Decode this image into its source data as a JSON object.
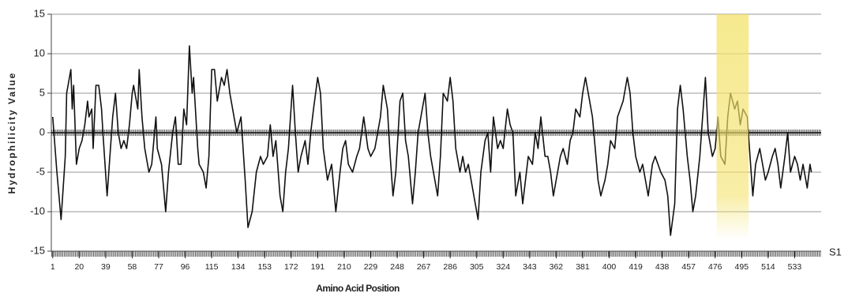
{
  "chart_data": {
    "type": "line",
    "y_label": "Hydrophilicity Value",
    "x_label": "Amino Acid Position",
    "x": [
      1,
      4,
      7,
      10,
      11,
      13,
      14,
      15,
      16,
      18,
      20,
      22,
      24,
      26,
      27,
      29,
      30,
      32,
      34,
      36,
      37,
      40,
      42,
      44,
      46,
      48,
      50,
      52,
      54,
      56,
      58,
      59,
      62,
      63,
      65,
      67,
      70,
      72,
      75,
      76,
      79,
      82,
      84,
      87,
      89,
      91,
      93,
      95,
      97,
      99,
      101,
      102,
      105,
      106,
      109,
      111,
      113,
      115,
      117,
      119,
      122,
      124,
      126,
      128,
      131,
      133,
      136,
      139,
      141,
      144,
      147,
      150,
      152,
      155,
      157,
      159,
      161,
      164,
      166,
      168,
      170,
      173,
      175,
      177,
      179,
      182,
      184,
      186,
      188,
      191,
      193,
      195,
      198,
      201,
      204,
      207,
      209,
      211,
      213,
      216,
      219,
      221,
      224,
      227,
      229,
      232,
      234,
      236,
      238,
      241,
      243,
      245,
      247,
      250,
      252,
      254,
      256,
      259,
      261,
      263,
      265,
      268,
      270,
      272,
      274,
      277,
      279,
      281,
      284,
      286,
      288,
      290,
      293,
      295,
      297,
      299,
      302,
      304,
      306,
      308,
      311,
      313,
      315,
      317,
      320,
      322,
      324,
      327,
      329,
      331,
      333,
      336,
      338,
      340,
      342,
      345,
      347,
      349,
      351,
      354,
      356,
      358,
      360,
      363,
      365,
      367,
      370,
      372,
      374,
      376,
      379,
      381,
      383,
      385,
      388,
      390,
      392,
      394,
      397,
      399,
      401,
      404,
      406,
      408,
      410,
      413,
      415,
      417,
      419,
      422,
      424,
      426,
      428,
      431,
      433,
      435,
      437,
      440,
      442,
      444,
      447,
      449,
      451,
      453,
      456,
      458,
      460,
      462,
      465,
      467,
      469,
      471,
      474,
      476,
      478,
      480,
      483,
      485,
      487,
      490,
      492,
      494,
      496,
      499,
      501,
      503,
      505,
      508,
      510,
      512,
      514,
      517,
      519,
      521,
      523,
      526,
      528,
      530,
      533,
      535,
      537,
      539,
      542,
      544,
      545
    ],
    "series": [
      {
        "name": "S1",
        "color": "#111111",
        "values": [
          2,
          -5,
          -11,
          -3,
          5,
          7,
          8,
          3,
          6,
          -4,
          -2,
          -1,
          1,
          4,
          2,
          3,
          -2,
          6,
          6,
          3,
          0,
          -8,
          -3,
          2,
          5,
          0,
          -2,
          -1,
          -2,
          1,
          5,
          6,
          3,
          8,
          2,
          -2,
          -5,
          -4,
          2,
          -2,
          -4,
          -10,
          -5,
          0,
          2,
          -4,
          -4,
          3,
          1,
          11,
          5,
          7,
          -2,
          -4,
          -5,
          -7,
          -3,
          8,
          8,
          4,
          7,
          6,
          8,
          5,
          2,
          0,
          2,
          -6,
          -12,
          -10,
          -5,
          -3,
          -4,
          -3,
          1,
          -3,
          -1,
          -8,
          -10,
          -5,
          -2,
          6,
          0,
          -5,
          -3,
          -1,
          -4,
          0,
          3,
          7,
          5,
          -2,
          -6,
          -4,
          -10,
          -5,
          -2,
          -1,
          -4,
          -5,
          -3,
          -2,
          2,
          -2,
          -3,
          -2,
          0,
          2,
          6,
          3,
          -3,
          -8,
          -5,
          4,
          5,
          -1,
          -3,
          -9,
          -5,
          0,
          2,
          5,
          0,
          -3,
          -5,
          -8,
          -3,
          5,
          4,
          7,
          4,
          -2,
          -5,
          -3,
          -5,
          -4,
          -7,
          -9,
          -11,
          -5,
          -1,
          0,
          -5,
          2,
          -2,
          -1,
          -2,
          3,
          1,
          0,
          -8,
          -5,
          -9,
          -6,
          -3,
          -4,
          0,
          -2,
          2,
          -3,
          -3,
          -5,
          -8,
          -5,
          -3,
          -2,
          -4,
          -1,
          0,
          3,
          2,
          5,
          7,
          5,
          2,
          -2,
          -6,
          -8,
          -6,
          -4,
          -1,
          -2,
          2,
          3,
          4,
          7,
          5,
          0,
          -3,
          -5,
          -4,
          -6,
          -8,
          -4,
          -3,
          -4,
          -5,
          -6,
          -8,
          -13,
          -9,
          3,
          6,
          3,
          -3,
          -6,
          -10,
          -8,
          -3,
          2,
          7,
          0,
          -3,
          -2,
          2,
          -3,
          -4,
          2,
          5,
          3,
          4,
          1,
          3,
          2,
          -3,
          -8,
          -4,
          -2,
          -4,
          -6,
          -5,
          -3,
          -2,
          -4,
          -7,
          -3,
          0,
          -5,
          -3,
          -4,
          -6,
          -4,
          -7,
          -4,
          -5
        ]
      }
    ],
    "xlim": [
      0,
      552
    ],
    "xticks": [
      1,
      20,
      39,
      58,
      77,
      96,
      115,
      134,
      153,
      172,
      191,
      210,
      229,
      248,
      267,
      286,
      305,
      324,
      343,
      362,
      381,
      400,
      419,
      438,
      457,
      476,
      495,
      514,
      533
    ],
    "ylim": [
      -15,
      15
    ],
    "yticks": [
      -15,
      -10,
      -5,
      0,
      5,
      10,
      15
    ],
    "grid": true,
    "highlight": {
      "xlim": [
        477,
        500
      ],
      "color": "#f3e26a"
    }
  }
}
